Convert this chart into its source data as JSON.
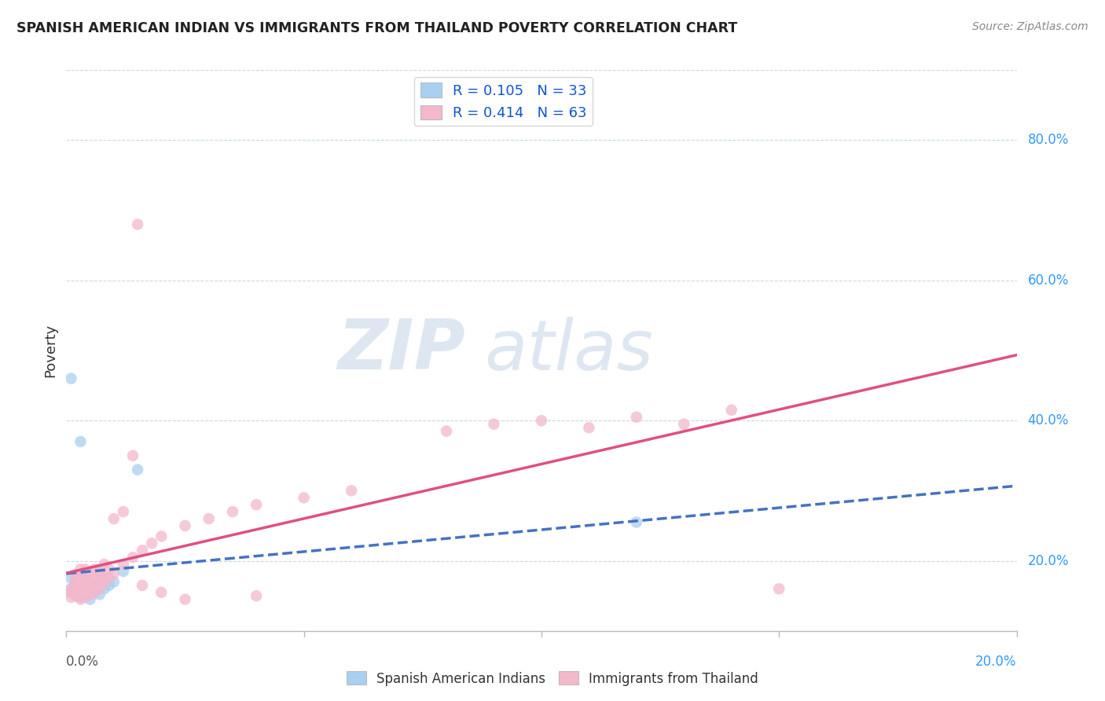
{
  "title": "SPANISH AMERICAN INDIAN VS IMMIGRANTS FROM THAILAND POVERTY CORRELATION CHART",
  "source": "Source: ZipAtlas.com",
  "ylabel": "Poverty",
  "right_yticks": [
    "20.0%",
    "40.0%",
    "60.0%",
    "80.0%"
  ],
  "right_ytick_vals": [
    0.2,
    0.4,
    0.6,
    0.8
  ],
  "legend1_R": "0.105",
  "legend1_N": "33",
  "legend2_R": "0.414",
  "legend2_N": "63",
  "blue_color": "#a8d0f0",
  "pink_color": "#f4b8cb",
  "blue_line_color": "#4472c4",
  "pink_line_color": "#e05080",
  "xlim": [
    0.0,
    0.2
  ],
  "ylim": [
    0.1,
    0.9
  ],
  "blue_scatter": [
    [
      0.001,
      0.155
    ],
    [
      0.001,
      0.16
    ],
    [
      0.001,
      0.175
    ],
    [
      0.002,
      0.15
    ],
    [
      0.002,
      0.16
    ],
    [
      0.002,
      0.168
    ],
    [
      0.002,
      0.172
    ],
    [
      0.002,
      0.18
    ],
    [
      0.003,
      0.148
    ],
    [
      0.003,
      0.155
    ],
    [
      0.003,
      0.162
    ],
    [
      0.003,
      0.17
    ],
    [
      0.003,
      0.178
    ],
    [
      0.004,
      0.152
    ],
    [
      0.004,
      0.16
    ],
    [
      0.004,
      0.165
    ],
    [
      0.004,
      0.175
    ],
    [
      0.005,
      0.145
    ],
    [
      0.005,
      0.158
    ],
    [
      0.005,
      0.163
    ],
    [
      0.006,
      0.155
    ],
    [
      0.006,
      0.168
    ],
    [
      0.007,
      0.152
    ],
    [
      0.007,
      0.172
    ],
    [
      0.008,
      0.16
    ],
    [
      0.008,
      0.175
    ],
    [
      0.009,
      0.165
    ],
    [
      0.01,
      0.17
    ],
    [
      0.012,
      0.185
    ],
    [
      0.015,
      0.33
    ],
    [
      0.001,
      0.46
    ],
    [
      0.003,
      0.37
    ],
    [
      0.12,
      0.255
    ]
  ],
  "pink_scatter": [
    [
      0.001,
      0.155
    ],
    [
      0.001,
      0.16
    ],
    [
      0.001,
      0.148
    ],
    [
      0.002,
      0.15
    ],
    [
      0.002,
      0.158
    ],
    [
      0.002,
      0.165
    ],
    [
      0.002,
      0.172
    ],
    [
      0.002,
      0.178
    ],
    [
      0.003,
      0.145
    ],
    [
      0.003,
      0.155
    ],
    [
      0.003,
      0.162
    ],
    [
      0.003,
      0.17
    ],
    [
      0.003,
      0.18
    ],
    [
      0.003,
      0.188
    ],
    [
      0.004,
      0.148
    ],
    [
      0.004,
      0.158
    ],
    [
      0.004,
      0.165
    ],
    [
      0.004,
      0.175
    ],
    [
      0.004,
      0.188
    ],
    [
      0.005,
      0.152
    ],
    [
      0.005,
      0.162
    ],
    [
      0.005,
      0.172
    ],
    [
      0.005,
      0.182
    ],
    [
      0.006,
      0.155
    ],
    [
      0.006,
      0.165
    ],
    [
      0.006,
      0.178
    ],
    [
      0.006,
      0.188
    ],
    [
      0.007,
      0.16
    ],
    [
      0.007,
      0.172
    ],
    [
      0.007,
      0.185
    ],
    [
      0.008,
      0.168
    ],
    [
      0.008,
      0.178
    ],
    [
      0.008,
      0.195
    ],
    [
      0.009,
      0.175
    ],
    [
      0.009,
      0.188
    ],
    [
      0.01,
      0.182
    ],
    [
      0.01,
      0.26
    ],
    [
      0.012,
      0.195
    ],
    [
      0.012,
      0.27
    ],
    [
      0.014,
      0.205
    ],
    [
      0.014,
      0.35
    ],
    [
      0.016,
      0.215
    ],
    [
      0.016,
      0.165
    ],
    [
      0.018,
      0.225
    ],
    [
      0.02,
      0.235
    ],
    [
      0.02,
      0.155
    ],
    [
      0.025,
      0.25
    ],
    [
      0.025,
      0.145
    ],
    [
      0.03,
      0.26
    ],
    [
      0.035,
      0.27
    ],
    [
      0.04,
      0.28
    ],
    [
      0.04,
      0.15
    ],
    [
      0.05,
      0.29
    ],
    [
      0.06,
      0.3
    ],
    [
      0.08,
      0.385
    ],
    [
      0.09,
      0.395
    ],
    [
      0.1,
      0.4
    ],
    [
      0.11,
      0.39
    ],
    [
      0.12,
      0.405
    ],
    [
      0.13,
      0.395
    ],
    [
      0.14,
      0.415
    ],
    [
      0.15,
      0.16
    ],
    [
      0.015,
      0.68
    ]
  ]
}
